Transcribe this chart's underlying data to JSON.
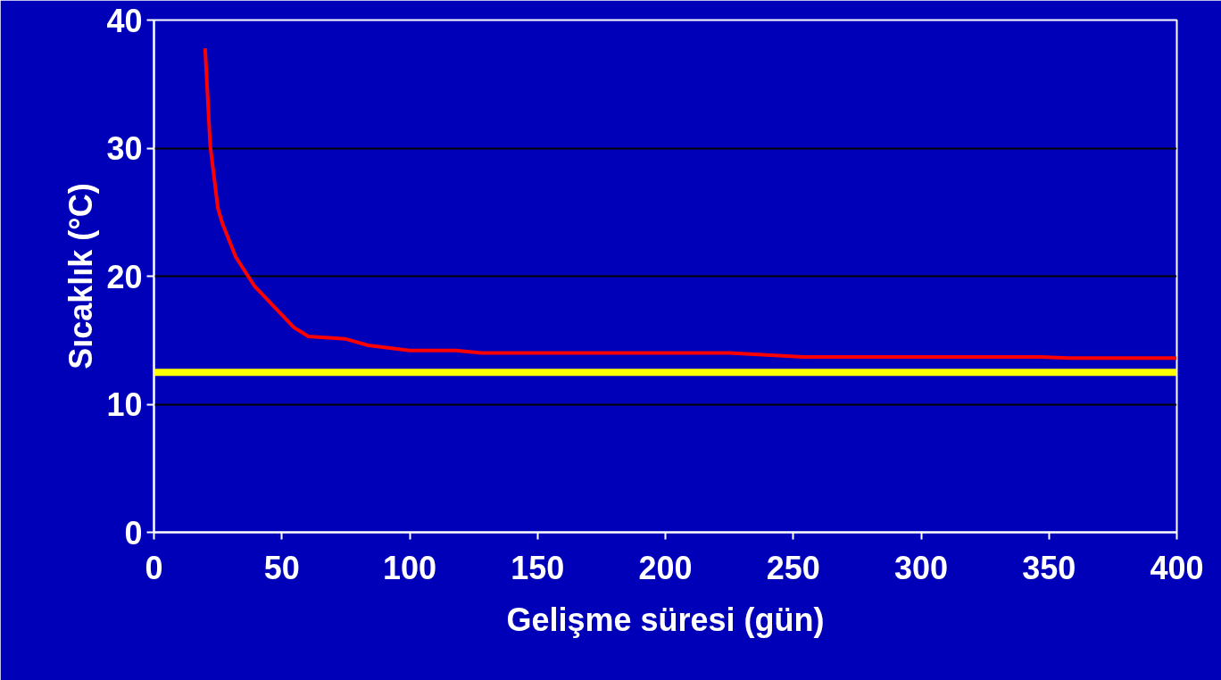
{
  "chart_data": {
    "type": "line",
    "xlabel": "Gelişme süresi (gün)",
    "ylabel": "Sıcaklık (°C)",
    "x": [
      20,
      22,
      25,
      26.8,
      32,
      39.4,
      54.7,
      60.4,
      75,
      83.8,
      100,
      118,
      128,
      225,
      254,
      346.6,
      358,
      400
    ],
    "series": [
      {
        "color": "#ff0000",
        "values": [
          37.8,
          30.2,
          25.3,
          24.1,
          21.5,
          19.2,
          16.0,
          15.3,
          15.1,
          14.6,
          14.2,
          14.2,
          14.0,
          14.0,
          13.7,
          13.7,
          13.6,
          13.6
        ]
      }
    ],
    "ref_lines": [
      {
        "axis": "y",
        "value": 12.5,
        "color": "#ffff00"
      }
    ],
    "xlim": [
      0,
      400
    ],
    "xticks": [
      0,
      50,
      100,
      150,
      200,
      250,
      300,
      350,
      400
    ],
    "ylim": [
      0,
      40
    ],
    "yticks": [
      0,
      10,
      20,
      30,
      40
    ],
    "grid": "y",
    "marker": "none",
    "line_style": "solid"
  }
}
